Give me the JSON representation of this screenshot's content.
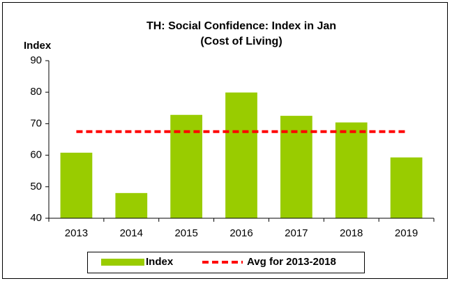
{
  "chart_data": {
    "type": "bar",
    "title": "TH: Social Confidence: Index in Jan",
    "subtitle": "(Cost of Living)",
    "y_label": "Index",
    "categories": [
      "2013",
      "2014",
      "2015",
      "2016",
      "2017",
      "2018",
      "2019"
    ],
    "series": [
      {
        "name": "Index",
        "type": "bar",
        "color": "#99cc00",
        "values": [
          60.8,
          48,
          72.8,
          79.9,
          72.5,
          70.4,
          59.3
        ]
      },
      {
        "name": "Avg for 2013-2018",
        "type": "line",
        "color": "#ff0000",
        "values": [
          67.5,
          67.5,
          67.5,
          67.5,
          67.5,
          67.5,
          67.5
        ]
      }
    ],
    "ylim": [
      40,
      90
    ],
    "yticks": [
      40,
      50,
      60,
      70,
      80,
      90
    ],
    "grid": false,
    "legend": "bottom"
  }
}
